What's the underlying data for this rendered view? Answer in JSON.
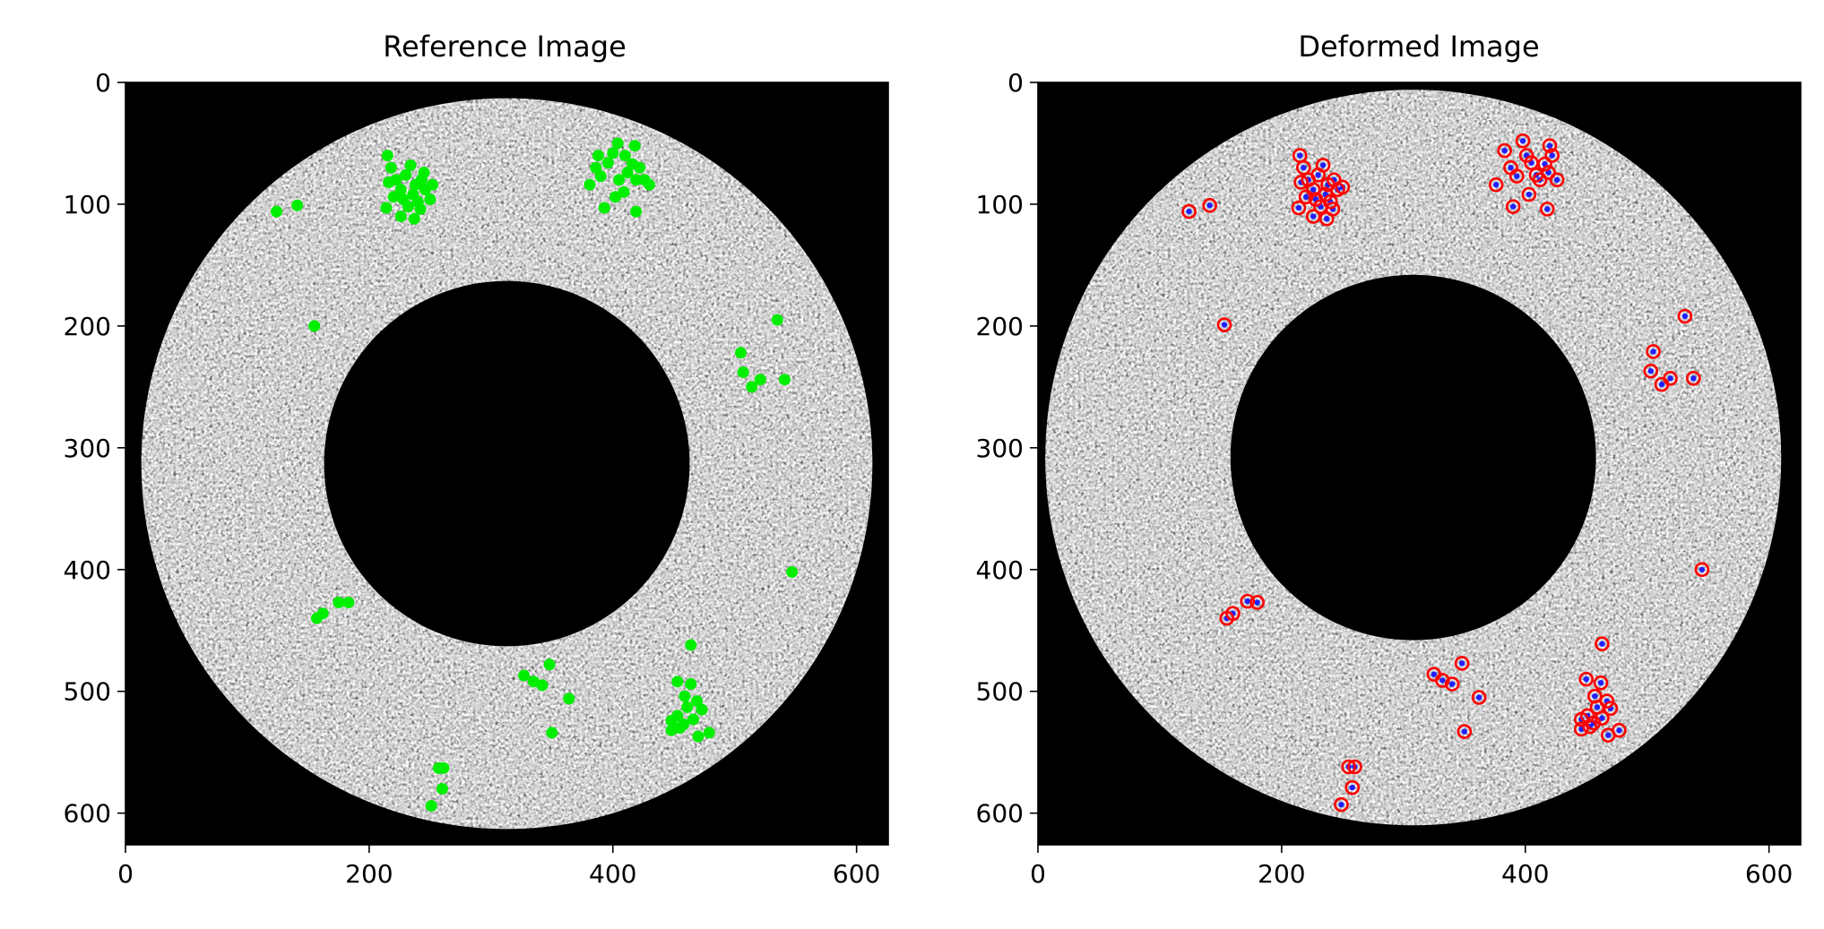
{
  "chart_data": [
    {
      "type": "scatter",
      "title": "Reference Image",
      "xlim": [
        0,
        626
      ],
      "ylim": [
        626,
        0
      ],
      "xticks": [
        0,
        200,
        400,
        600
      ],
      "yticks": [
        0,
        100,
        200,
        300,
        400,
        500,
        600
      ],
      "xtick_labels": [
        "0",
        "200",
        "400",
        "600"
      ],
      "ytick_labels": [
        "0",
        "100",
        "200",
        "300",
        "400",
        "500",
        "600"
      ],
      "grid": false,
      "image": {
        "kind": "speckle-annulus",
        "center": [
          313,
          313
        ],
        "outer_radius": 300,
        "inner_radius": 150
      },
      "series": [
        {
          "marker": "filled-circle",
          "color": "#00ee00",
          "points": [
            [
              124,
              106
            ],
            [
              141,
              101
            ],
            [
              155,
              200
            ],
            [
              215,
              60
            ],
            [
              218,
              70
            ],
            [
              222,
              80
            ],
            [
              226,
              88
            ],
            [
              230,
              76
            ],
            [
              234,
              68
            ],
            [
              236,
              92
            ],
            [
              238,
              84
            ],
            [
              240,
              98
            ],
            [
              243,
              80
            ],
            [
              246,
              88
            ],
            [
              250,
              96
            ],
            [
              252,
              84
            ],
            [
              242,
              104
            ],
            [
              237,
              112
            ],
            [
              226,
              110
            ],
            [
              214,
              103
            ],
            [
              220,
              94
            ],
            [
              228,
              96
            ],
            [
              232,
              102
            ],
            [
              245,
              74
            ],
            [
              216,
              82
            ],
            [
              381,
              84
            ],
            [
              386,
              70
            ],
            [
              390,
              77
            ],
            [
              396,
              66
            ],
            [
              400,
              58
            ],
            [
              405,
              80
            ],
            [
              409,
              90
            ],
            [
              412,
              74
            ],
            [
              416,
              67
            ],
            [
              419,
              80
            ],
            [
              422,
              70
            ],
            [
              426,
              80
            ],
            [
              430,
              84
            ],
            [
              418,
              52
            ],
            [
              410,
              60
            ],
            [
              393,
              103
            ],
            [
              402,
              94
            ],
            [
              419,
              106
            ],
            [
              404,
              50
            ],
            [
              388,
              60
            ],
            [
              535,
              195
            ],
            [
              505,
              222
            ],
            [
              507,
              238
            ],
            [
              514,
              250
            ],
            [
              521,
              244
            ],
            [
              541,
              244
            ],
            [
              547,
              402
            ],
            [
              157,
              440
            ],
            [
              162,
              436
            ],
            [
              175,
              427
            ],
            [
              183,
              427
            ],
            [
              348,
              478
            ],
            [
              327,
              487
            ],
            [
              335,
              492
            ],
            [
              342,
              495
            ],
            [
              364,
              506
            ],
            [
              350,
              534
            ],
            [
              464,
              462
            ],
            [
              453,
              492
            ],
            [
              464,
              494
            ],
            [
              459,
              504
            ],
            [
              469,
              508
            ],
            [
              461,
              513
            ],
            [
              453,
              520
            ],
            [
              473,
              515
            ],
            [
              466,
              523
            ],
            [
              455,
              530
            ],
            [
              448,
              524
            ],
            [
              458,
              527
            ],
            [
              470,
              537
            ],
            [
              479,
              534
            ],
            [
              448,
              532
            ],
            [
              261,
              563
            ],
            [
              257,
              563
            ],
            [
              260,
              580
            ],
            [
              251,
              594
            ]
          ]
        }
      ]
    },
    {
      "type": "scatter",
      "title": "Deformed Image",
      "xlim": [
        0,
        626
      ],
      "ylim": [
        626,
        0
      ],
      "xticks": [
        0,
        200,
        400,
        600
      ],
      "yticks": [
        0,
        100,
        200,
        300,
        400,
        500,
        600
      ],
      "xtick_labels": [
        "0",
        "200",
        "400",
        "600"
      ],
      "ytick_labels": [
        "0",
        "100",
        "200",
        "300",
        "400",
        "500",
        "600"
      ],
      "grid": false,
      "image": {
        "kind": "speckle-annulus",
        "center": [
          308,
          308
        ],
        "outer_radius": 302,
        "inner_radius": 150
      },
      "series": [
        {
          "marker": "filled-circle",
          "color": "#2020ff",
          "points": [
            [
              124,
              106
            ],
            [
              141,
              101
            ],
            [
              153,
              199
            ],
            [
              215,
              60
            ],
            [
              218,
              70
            ],
            [
              222,
              80
            ],
            [
              226,
              88
            ],
            [
              230,
              76
            ],
            [
              234,
              68
            ],
            [
              236,
              92
            ],
            [
              238,
              84
            ],
            [
              240,
              98
            ],
            [
              243,
              80
            ],
            [
              246,
              88
            ],
            [
              250,
              86
            ],
            [
              242,
              104
            ],
            [
              237,
              112
            ],
            [
              226,
              110
            ],
            [
              214,
              103
            ],
            [
              220,
              94
            ],
            [
              228,
              96
            ],
            [
              232,
              102
            ],
            [
              216,
              82
            ],
            [
              376,
              84
            ],
            [
              383,
              56
            ],
            [
              388,
              70
            ],
            [
              393,
              77
            ],
            [
              398,
              48
            ],
            [
              401,
              60
            ],
            [
              405,
              66
            ],
            [
              409,
              76
            ],
            [
              412,
              80
            ],
            [
              416,
              67
            ],
            [
              419,
              74
            ],
            [
              422,
              60
            ],
            [
              426,
              80
            ],
            [
              420,
              52
            ],
            [
              390,
              102
            ],
            [
              403,
              92
            ],
            [
              418,
              104
            ],
            [
              531,
              192
            ],
            [
              505,
              221
            ],
            [
              503,
              237
            ],
            [
              512,
              248
            ],
            [
              519,
              243
            ],
            [
              538,
              243
            ],
            [
              545,
              400
            ],
            [
              155,
              440
            ],
            [
              160,
              436
            ],
            [
              172,
              426
            ],
            [
              180,
              427
            ],
            [
              348,
              477
            ],
            [
              325,
              486
            ],
            [
              332,
              491
            ],
            [
              340,
              494
            ],
            [
              362,
              505
            ],
            [
              350,
              533
            ],
            [
              463,
              461
            ],
            [
              450,
              490
            ],
            [
              462,
              493
            ],
            [
              457,
              504
            ],
            [
              467,
              508
            ],
            [
              459,
              513
            ],
            [
              451,
              520
            ],
            [
              470,
              514
            ],
            [
              463,
              522
            ],
            [
              453,
              529
            ],
            [
              446,
              523
            ],
            [
              456,
              526
            ],
            [
              468,
              536
            ],
            [
              477,
              532
            ],
            [
              446,
              531
            ],
            [
              260,
              562
            ],
            [
              255,
              562
            ],
            [
              258,
              579
            ],
            [
              249,
              593
            ]
          ]
        },
        {
          "marker": "open-circle",
          "color": "#ff0000",
          "points": [
            [
              124,
              106
            ],
            [
              141,
              101
            ],
            [
              153,
              199
            ],
            [
              215,
              60
            ],
            [
              218,
              70
            ],
            [
              222,
              80
            ],
            [
              226,
              88
            ],
            [
              230,
              76
            ],
            [
              234,
              68
            ],
            [
              236,
              92
            ],
            [
              238,
              84
            ],
            [
              240,
              98
            ],
            [
              243,
              80
            ],
            [
              246,
              88
            ],
            [
              250,
              86
            ],
            [
              242,
              104
            ],
            [
              237,
              112
            ],
            [
              226,
              110
            ],
            [
              214,
              103
            ],
            [
              220,
              94
            ],
            [
              228,
              96
            ],
            [
              232,
              102
            ],
            [
              216,
              82
            ],
            [
              376,
              84
            ],
            [
              383,
              56
            ],
            [
              388,
              70
            ],
            [
              393,
              77
            ],
            [
              398,
              48
            ],
            [
              401,
              60
            ],
            [
              405,
              66
            ],
            [
              409,
              76
            ],
            [
              412,
              80
            ],
            [
              416,
              67
            ],
            [
              419,
              74
            ],
            [
              422,
              60
            ],
            [
              426,
              80
            ],
            [
              420,
              52
            ],
            [
              390,
              102
            ],
            [
              403,
              92
            ],
            [
              418,
              104
            ],
            [
              531,
              192
            ],
            [
              505,
              221
            ],
            [
              503,
              237
            ],
            [
              512,
              248
            ],
            [
              519,
              243
            ],
            [
              538,
              243
            ],
            [
              545,
              400
            ],
            [
              155,
              440
            ],
            [
              160,
              436
            ],
            [
              172,
              426
            ],
            [
              180,
              427
            ],
            [
              348,
              477
            ],
            [
              325,
              486
            ],
            [
              332,
              491
            ],
            [
              340,
              494
            ],
            [
              362,
              505
            ],
            [
              350,
              533
            ],
            [
              463,
              461
            ],
            [
              450,
              490
            ],
            [
              462,
              493
            ],
            [
              457,
              504
            ],
            [
              467,
              508
            ],
            [
              459,
              513
            ],
            [
              451,
              520
            ],
            [
              470,
              514
            ],
            [
              463,
              522
            ],
            [
              453,
              529
            ],
            [
              446,
              523
            ],
            [
              456,
              526
            ],
            [
              468,
              536
            ],
            [
              477,
              532
            ],
            [
              446,
              531
            ],
            [
              260,
              562
            ],
            [
              255,
              562
            ],
            [
              258,
              579
            ],
            [
              249,
              593
            ]
          ]
        }
      ]
    }
  ]
}
